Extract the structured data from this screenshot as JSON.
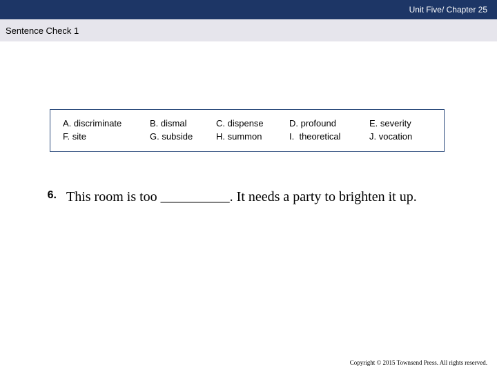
{
  "header": {
    "title": "Unit Five/ Chapter 25",
    "bg_color": "#1d3666",
    "text_color": "#ffffff"
  },
  "subheader": {
    "title": "Sentence Check 1",
    "bg_color": "#e6e5ec",
    "text_color": "#000000"
  },
  "vocab": {
    "border_color": "#2b4a7c",
    "items": [
      {
        "letter": "A.",
        "word": "discriminate"
      },
      {
        "letter": "B.",
        "word": "dismal"
      },
      {
        "letter": "C.",
        "word": "dispense"
      },
      {
        "letter": "D.",
        "word": "profound"
      },
      {
        "letter": "E.",
        "word": "severity"
      },
      {
        "letter": "F.",
        "word": "site"
      },
      {
        "letter": "G.",
        "word": "subside"
      },
      {
        "letter": "H.",
        "word": "summon"
      },
      {
        "letter": "I.",
        "word": "theoretical"
      },
      {
        "letter": "J.",
        "word": "vocation"
      }
    ]
  },
  "question": {
    "number": "6.",
    "text": "This room is too __________. It needs a party to brighten it up."
  },
  "copyright": "Copyright © 2015 Townsend Press. All rights reserved."
}
